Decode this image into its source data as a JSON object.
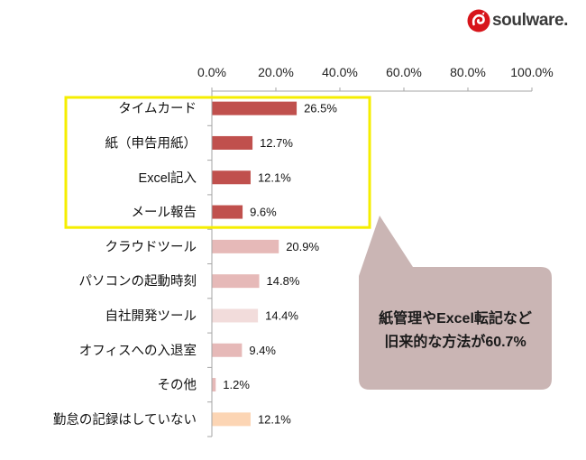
{
  "logo": {
    "text": "soulware.",
    "icon": "soulware-swirl-icon",
    "color": "#d7141a"
  },
  "chart_data": {
    "type": "bar",
    "orientation": "horizontal",
    "title": "",
    "xlabel": "",
    "ylabel": "",
    "categories": [
      "タイムカード",
      "紙（申告用紙）",
      "Excel記入",
      "メール報告",
      "クラウドツール",
      "パソコンの起動時刻",
      "自社開発ツール",
      "オフィスへの入退室",
      "その他",
      "勤怠の記録はしていない"
    ],
    "values": [
      26.5,
      12.7,
      12.1,
      9.6,
      20.9,
      14.8,
      14.4,
      9.4,
      1.2,
      12.1
    ],
    "unit": "%",
    "bar_colors": [
      "#c0504d",
      "#c0504d",
      "#c0504d",
      "#c0504d",
      "#e6b9b8",
      "#e6b9b8",
      "#f2dcdb",
      "#e6b9b8",
      "#e6b9b8",
      "#fcd5b4"
    ],
    "xlim": [
      0,
      100
    ],
    "xtick_labels": [
      "0.0%",
      "20.0%",
      "40.0%",
      "60.0%",
      "80.0%",
      "100.0%"
    ],
    "x_axis_position": "top",
    "grid": false,
    "legend": "none",
    "data_labels": true
  },
  "highlight": {
    "color": "#f5ee00",
    "first_category_index": 0,
    "last_category_index": 3
  },
  "callout": {
    "lines": [
      "紙管理やExcel転記など",
      "旧来的な方法が60.7%"
    ],
    "fill": "#cab5b4",
    "text_color": "#1a1a1a"
  }
}
